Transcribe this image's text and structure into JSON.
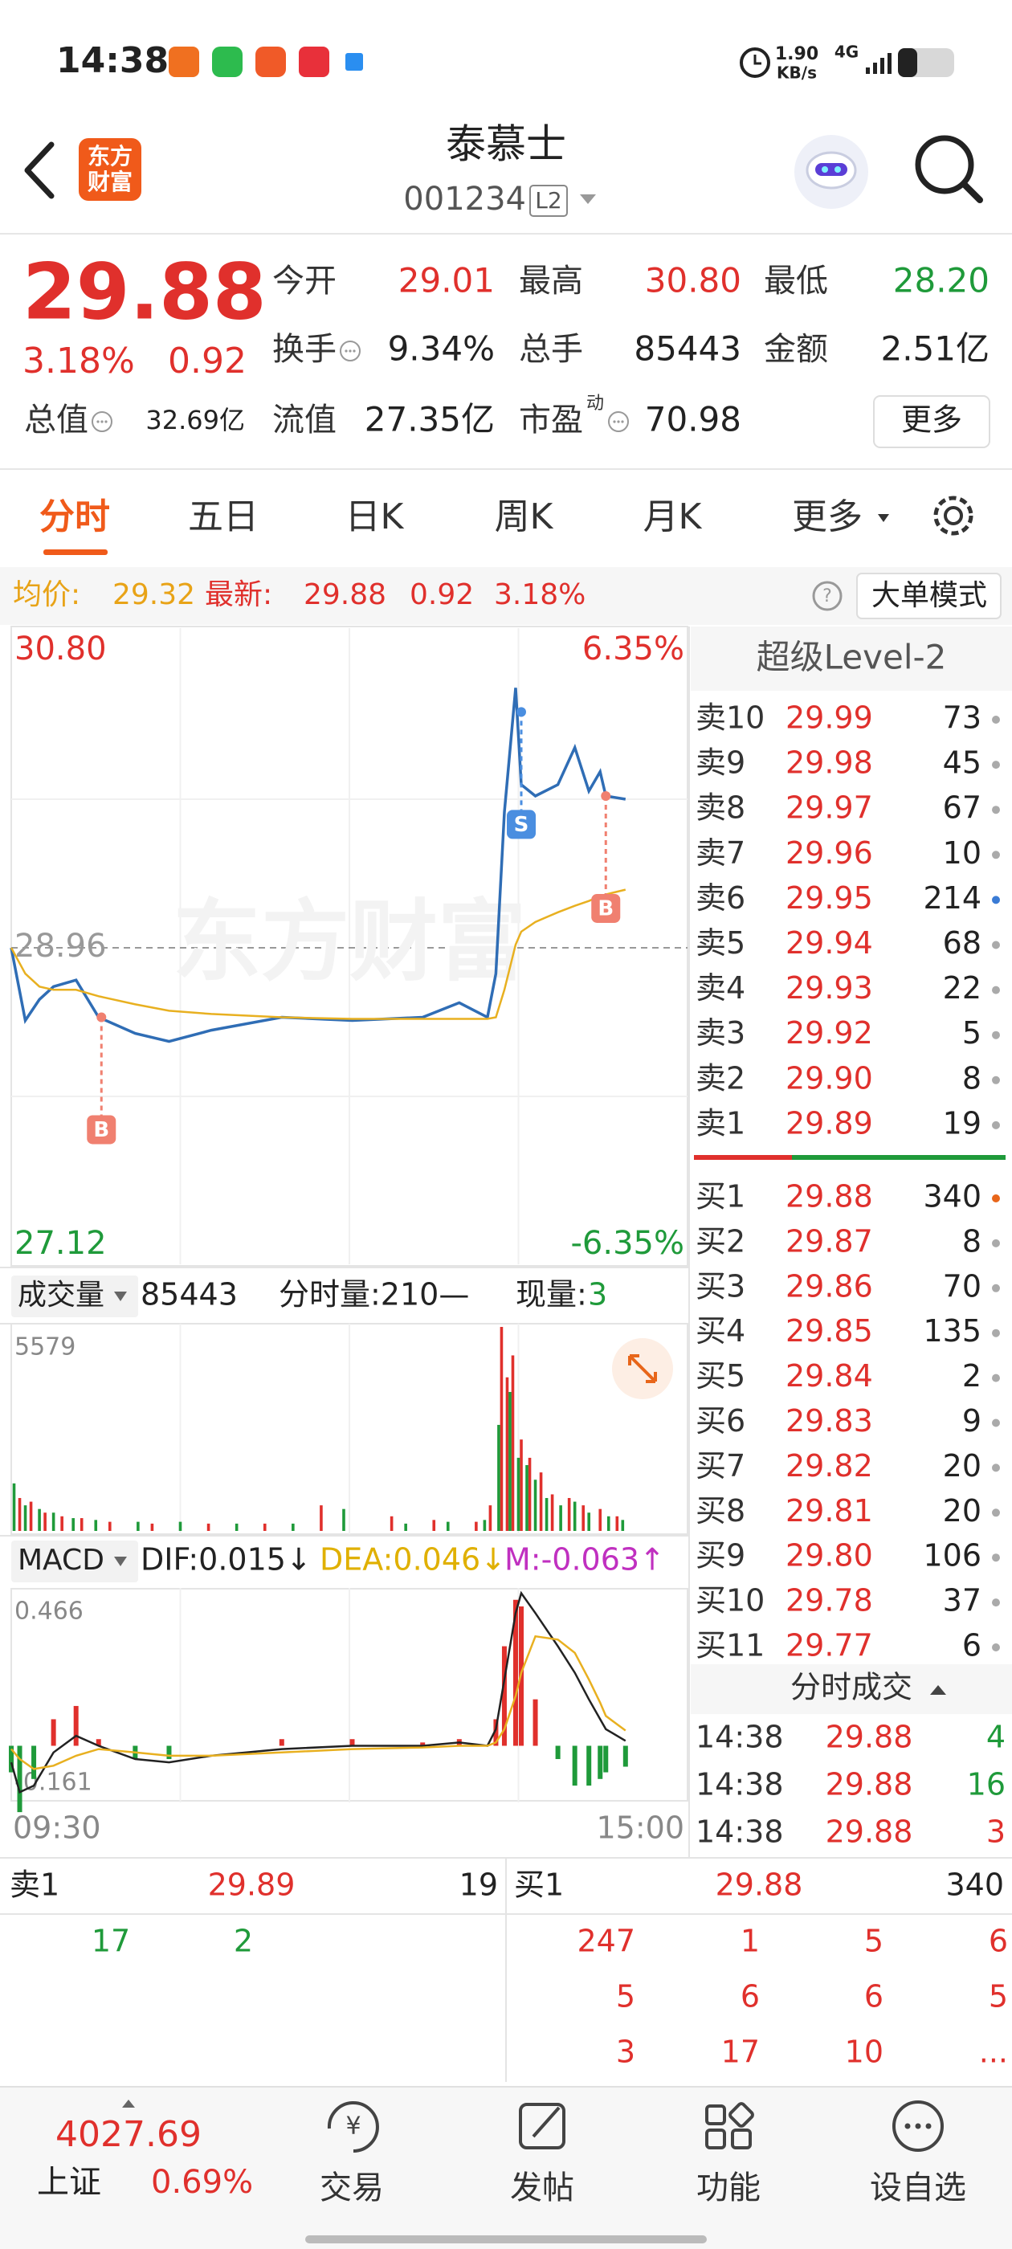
{
  "status_bar": {
    "time": "14:38",
    "speed": "1.90",
    "speed_unit": "KB/s",
    "network": "4G"
  },
  "header": {
    "logo": [
      "东方",
      "财富"
    ],
    "title": "泰慕士",
    "code": "001234",
    "level": "L2"
  },
  "quote": {
    "price": "29.88",
    "change_pct": "3.18%",
    "change": "0.92",
    "fields": [
      {
        "label": "今开",
        "value": "29.01",
        "color": "#e0302c"
      },
      {
        "label": "最高",
        "value": "30.80",
        "color": "#e0302c"
      },
      {
        "label": "最低",
        "value": "28.20",
        "color": "#1f9a3a"
      },
      {
        "label": "换手",
        "value": "9.34%",
        "color": "#222222",
        "info": true
      },
      {
        "label": "总手",
        "value": "85443",
        "color": "#222222"
      },
      {
        "label": "金额",
        "value": "2.51亿",
        "color": "#222222"
      },
      {
        "label": "总值",
        "value": "32.69亿",
        "color": "#222222",
        "info": true
      },
      {
        "label": "流值",
        "value": "27.35亿",
        "color": "#222222"
      },
      {
        "label": "市盈",
        "sup": "动",
        "value": "70.98",
        "color": "#222222",
        "info": true
      }
    ],
    "more": "更多"
  },
  "tabs": {
    "items": [
      "分时",
      "五日",
      "日K",
      "周K",
      "月K",
      "更多"
    ],
    "active": 0
  },
  "info_bar": {
    "avg_label": "均价:",
    "avg": "29.32",
    "latest_label": "最新:",
    "latest": "29.88",
    "change": "0.92",
    "change_pct": "3.18%",
    "mode": "大单模式"
  },
  "volume_header": {
    "menu": "成交量",
    "total": "85443",
    "tick_volume": "分时量:210—",
    "current_label": "现量:",
    "current": "3"
  },
  "macd_header": {
    "menu": "MACD",
    "dif": "DIF:0.015↓",
    "dea": "DEA:0.046↓",
    "m": "M:-0.063↑"
  },
  "chart_data": [
    {
      "type": "line",
      "watermark": "东方财富",
      "x": [
        0,
        5,
        10,
        15,
        23,
        31,
        44,
        56,
        71,
        96,
        121,
        146,
        159,
        169,
        172,
        175,
        179,
        181,
        186,
        194,
        200,
        205,
        209,
        211,
        218
      ],
      "xlim": [
        0,
        240
      ],
      "xticks": [
        {
          "value": 0,
          "label": "09:30"
        },
        {
          "value": 240,
          "label": "15:00"
        }
      ],
      "ylim": [
        27.12,
        30.8
      ],
      "yticks": [
        27.12,
        28.96,
        {
          "value": 30.8,
          "label": "30.80"
        }
      ],
      "tick_colors": [
        "#1f9a3a",
        "#999999",
        "#e0302c"
      ],
      "tick_lines": [
        "none",
        "dashed",
        "none"
      ],
      "y2lim": [
        -6.35,
        6.35
      ],
      "y2ticks": [
        {
          "value": -6.35,
          "label": "-6.35%"
        },
        {
          "value": 6.35,
          "label": "6.35%"
        }
      ],
      "y2tick_colors": [
        "#1f9a3a",
        "#e0302c"
      ],
      "series": [
        {
          "color": "#2f6db5",
          "values": [
            28.96,
            28.51,
            28.64,
            28.72,
            28.76,
            28.53,
            28.43,
            28.38,
            28.45,
            28.53,
            28.51,
            28.53,
            28.62,
            28.53,
            28.8,
            29.8,
            30.57,
            29.97,
            29.9,
            29.97,
            30.2,
            29.93,
            30.05,
            29.9,
            29.88
          ]
        },
        {
          "color": "#e8b020",
          "values": [
            28.96,
            28.8,
            28.72,
            28.7,
            28.7,
            28.66,
            28.61,
            28.57,
            28.55,
            28.53,
            28.52,
            28.52,
            28.52,
            28.52,
            28.53,
            28.7,
            28.98,
            29.06,
            29.12,
            29.18,
            29.22,
            29.25,
            29.28,
            29.29,
            29.32
          ]
        }
      ],
      "markers": [
        {
          "label": "B",
          "x": 32,
          "value": 28.53,
          "color": "#f08070"
        },
        {
          "label": "S",
          "x": 181,
          "value": 30.42,
          "color": "#4a8ee0"
        },
        {
          "label": "B",
          "x": 211,
          "value": 29.9,
          "color": "#f08070"
        }
      ]
    },
    {
      "type": "bar",
      "xlim": [
        0,
        240
      ],
      "ylim": [
        0,
        5579
      ],
      "yticks": [
        5579
      ],
      "series": [
        {
          "color": "#e0302c",
          "x": [
            3,
            7,
            12,
            18,
            25,
            35,
            50,
            70,
            90,
            110,
            135,
            150,
            165,
            170,
            174,
            176,
            178,
            181,
            184,
            188,
            192,
            198,
            203,
            209,
            215
          ],
          "values": [
            900,
            800,
            500,
            400,
            350,
            250,
            200,
            200,
            200,
            700,
            400,
            300,
            250,
            700,
            5579,
            4200,
            4800,
            2500,
            2000,
            1600,
            1000,
            900,
            700,
            600,
            400
          ]
        },
        {
          "color": "#1f9a3a",
          "x": [
            1,
            5,
            10,
            15,
            22,
            30,
            45,
            60,
            80,
            100,
            118,
            140,
            155,
            168,
            173,
            177,
            180,
            183,
            186,
            190,
            195,
            200,
            205,
            212,
            217
          ],
          "values": [
            1300,
            700,
            600,
            500,
            350,
            300,
            250,
            250,
            200,
            200,
            600,
            200,
            250,
            300,
            2900,
            3800,
            2000,
            1800,
            1400,
            900,
            700,
            800,
            500,
            400,
            300
          ]
        }
      ]
    },
    {
      "type": "macd",
      "xlim": [
        0,
        240
      ],
      "ylim": [
        -0.161,
        0.466
      ],
      "yticks": [
        -0.161,
        0.466
      ],
      "x": [
        0,
        3,
        8,
        15,
        23,
        31,
        44,
        56,
        71,
        96,
        121,
        146,
        159,
        169,
        172,
        175,
        179,
        181,
        186,
        194,
        200,
        205,
        209,
        211,
        218
      ],
      "series": [
        {
          "color": "#222222",
          "values": [
            -0.05,
            -0.14,
            -0.12,
            -0.02,
            0.03,
            0.0,
            -0.04,
            -0.05,
            -0.03,
            -0.01,
            0.0,
            0.0,
            0.01,
            0.0,
            0.05,
            0.2,
            0.4,
            0.46,
            0.4,
            0.3,
            0.22,
            0.14,
            0.08,
            0.05,
            0.015
          ]
        },
        {
          "color": "#e8b020",
          "values": [
            -0.01,
            -0.04,
            -0.07,
            -0.06,
            -0.03,
            -0.01,
            -0.02,
            -0.03,
            -0.03,
            -0.02,
            -0.01,
            -0.005,
            0.0,
            0.0,
            0.01,
            0.05,
            0.15,
            0.22,
            0.33,
            0.32,
            0.28,
            0.2,
            0.13,
            0.09,
            0.046
          ]
        }
      ],
      "histogram": {
        "up_color": "#e0302c",
        "down_color": "#1f9a3a",
        "values": [
          -0.08,
          -0.2,
          -0.1,
          0.08,
          0.12,
          0.02,
          -0.04,
          -0.04,
          0.0,
          0.02,
          0.02,
          0.01,
          0.02,
          0.0,
          0.08,
          0.3,
          0.44,
          0.42,
          0.14,
          -0.04,
          -0.12,
          -0.12,
          -0.1,
          -0.08,
          -0.063
        ]
      }
    }
  ],
  "order_book": {
    "title": "超级Level-2",
    "asks": [
      {
        "label": "卖10",
        "price": "29.99",
        "qty": "73",
        "dot": "#aaaaaa"
      },
      {
        "label": "卖9",
        "price": "29.98",
        "qty": "45",
        "dot": "#aaaaaa"
      },
      {
        "label": "卖8",
        "price": "29.97",
        "qty": "67",
        "dot": "#aaaaaa"
      },
      {
        "label": "卖7",
        "price": "29.96",
        "qty": "10",
        "dot": "#aaaaaa"
      },
      {
        "label": "卖6",
        "price": "29.95",
        "qty": "214",
        "dot": "#3a7bd5"
      },
      {
        "label": "卖5",
        "price": "29.94",
        "qty": "68",
        "dot": "#aaaaaa"
      },
      {
        "label": "卖4",
        "price": "29.93",
        "qty": "22",
        "dot": "#aaaaaa"
      },
      {
        "label": "卖3",
        "price": "29.92",
        "qty": "5",
        "dot": "#aaaaaa"
      },
      {
        "label": "卖2",
        "price": "29.90",
        "qty": "8",
        "dot": "#aaaaaa"
      },
      {
        "label": "卖1",
        "price": "29.89",
        "qty": "19",
        "dot": "#aaaaaa"
      }
    ],
    "bids": [
      {
        "label": "买1",
        "price": "29.88",
        "qty": "340",
        "dot": "#e8661a"
      },
      {
        "label": "买2",
        "price": "29.87",
        "qty": "8",
        "dot": "#aaaaaa"
      },
      {
        "label": "买3",
        "price": "29.86",
        "qty": "70",
        "dot": "#aaaaaa"
      },
      {
        "label": "买4",
        "price": "29.85",
        "qty": "135",
        "dot": "#aaaaaa"
      },
      {
        "label": "买5",
        "price": "29.84",
        "qty": "2",
        "dot": "#aaaaaa"
      },
      {
        "label": "买6",
        "price": "29.83",
        "qty": "9",
        "dot": "#aaaaaa"
      },
      {
        "label": "买7",
        "price": "29.82",
        "qty": "20",
        "dot": "#aaaaaa"
      },
      {
        "label": "买8",
        "price": "29.81",
        "qty": "20",
        "dot": "#aaaaaa"
      },
      {
        "label": "买9",
        "price": "29.80",
        "qty": "106",
        "dot": "#aaaaaa"
      },
      {
        "label": "买10",
        "price": "29.78",
        "qty": "37",
        "dot": "#aaaaaa"
      },
      {
        "label": "买11",
        "price": "29.77",
        "qty": "6",
        "dot": "#aaaaaa"
      }
    ]
  },
  "trades": {
    "title": "分时成交",
    "rows": [
      {
        "time": "14:38",
        "price": "29.88",
        "qty": "4",
        "color": "#1f9a3a"
      },
      {
        "time": "14:38",
        "price": "29.88",
        "qty": "16",
        "color": "#1f9a3a"
      },
      {
        "time": "14:38",
        "price": "29.88",
        "qty": "3",
        "color": "#e0302c"
      }
    ]
  },
  "queue": {
    "sell": {
      "label": "卖1",
      "price": "29.89",
      "qty": "19",
      "orders": [
        "17",
        "2"
      ]
    },
    "buy": {
      "label": "买1",
      "price": "29.88",
      "qty": "340",
      "orders": [
        "247",
        "1",
        "5",
        "6",
        "5",
        "6",
        "6",
        "5",
        "3",
        "17",
        "10",
        "..."
      ]
    }
  },
  "bottom_nav": {
    "index_value": "4027.69",
    "index_name": "上证",
    "index_change": "0.69%",
    "items": [
      "交易",
      "发帖",
      "功能",
      "设自选"
    ]
  }
}
